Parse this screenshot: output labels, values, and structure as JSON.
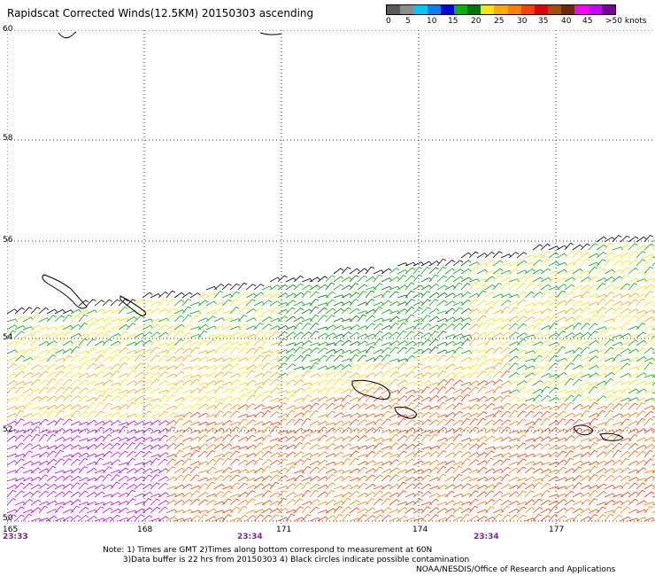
{
  "title": "Rapidscat Corrected Winds(12.5KM) 20150303 ascending",
  "legend": {
    "colors": [
      "#595959",
      "#8c8c8c",
      "#00c8ff",
      "#0080ff",
      "#0000e0",
      "#00b400",
      "#007800",
      "#ffe600",
      "#ffaa00",
      "#ff7f00",
      "#ff4000",
      "#e00000",
      "#a05000",
      "#6e2800",
      "#ff00ff",
      "#c800ff",
      "#780096"
    ],
    "labels": [
      "0",
      "5",
      "10",
      "15",
      "20",
      "25",
      "30",
      "35",
      "40",
      "45",
      ">50 knots"
    ]
  },
  "map": {
    "lat_labels": [
      "60",
      "58",
      "56",
      "54",
      "52",
      "50"
    ],
    "lon_labels": [
      "165",
      "168",
      "171",
      "174",
      "177"
    ],
    "time_labels": [
      "23:33",
      "23:34",
      "23:34"
    ]
  },
  "notes": {
    "line1": "Note: 1) Times are GMT 2)Times along bottom correspond to measurement at 60N",
    "line2": "3)Data buffer is 22 hrs from 20150303 4) Black circles indicate possible contamination"
  },
  "credit": "NOAA/NESDIS/Office of Research and Applications"
}
